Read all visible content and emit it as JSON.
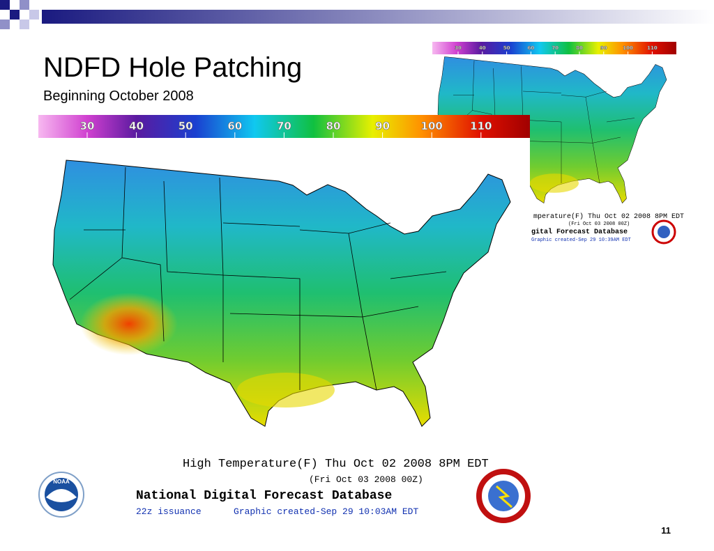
{
  "header": {
    "title": "NDFD Hole Patching",
    "subtitle": "Beginning October 2008"
  },
  "front_map": {
    "legend": [
      "30",
      "40",
      "50",
      "60",
      "70",
      "80",
      "90",
      "100",
      "110"
    ],
    "caption": "High Temperature(F) Thu Oct 02 2008  8PM EDT",
    "caption_utc": "(Fri Oct 03 2008 00Z)",
    "database": "National Digital Forecast Database",
    "issuance": "22z issuance",
    "created": "Graphic created-Sep 29 10:03AM EDT",
    "logo": "NOAA"
  },
  "back_map": {
    "legend": [
      "30",
      "40",
      "50",
      "60",
      "70",
      "80",
      "90",
      "100",
      "110"
    ],
    "caption": "mperature(F) Thu Oct 02 2008  8PM EDT",
    "caption_utc": "(Fri Oct 03 2008 00Z)",
    "database": "gital Forecast Database",
    "created": "Graphic created-Sep 29 10:39AM EDT"
  },
  "page_number": "11"
}
